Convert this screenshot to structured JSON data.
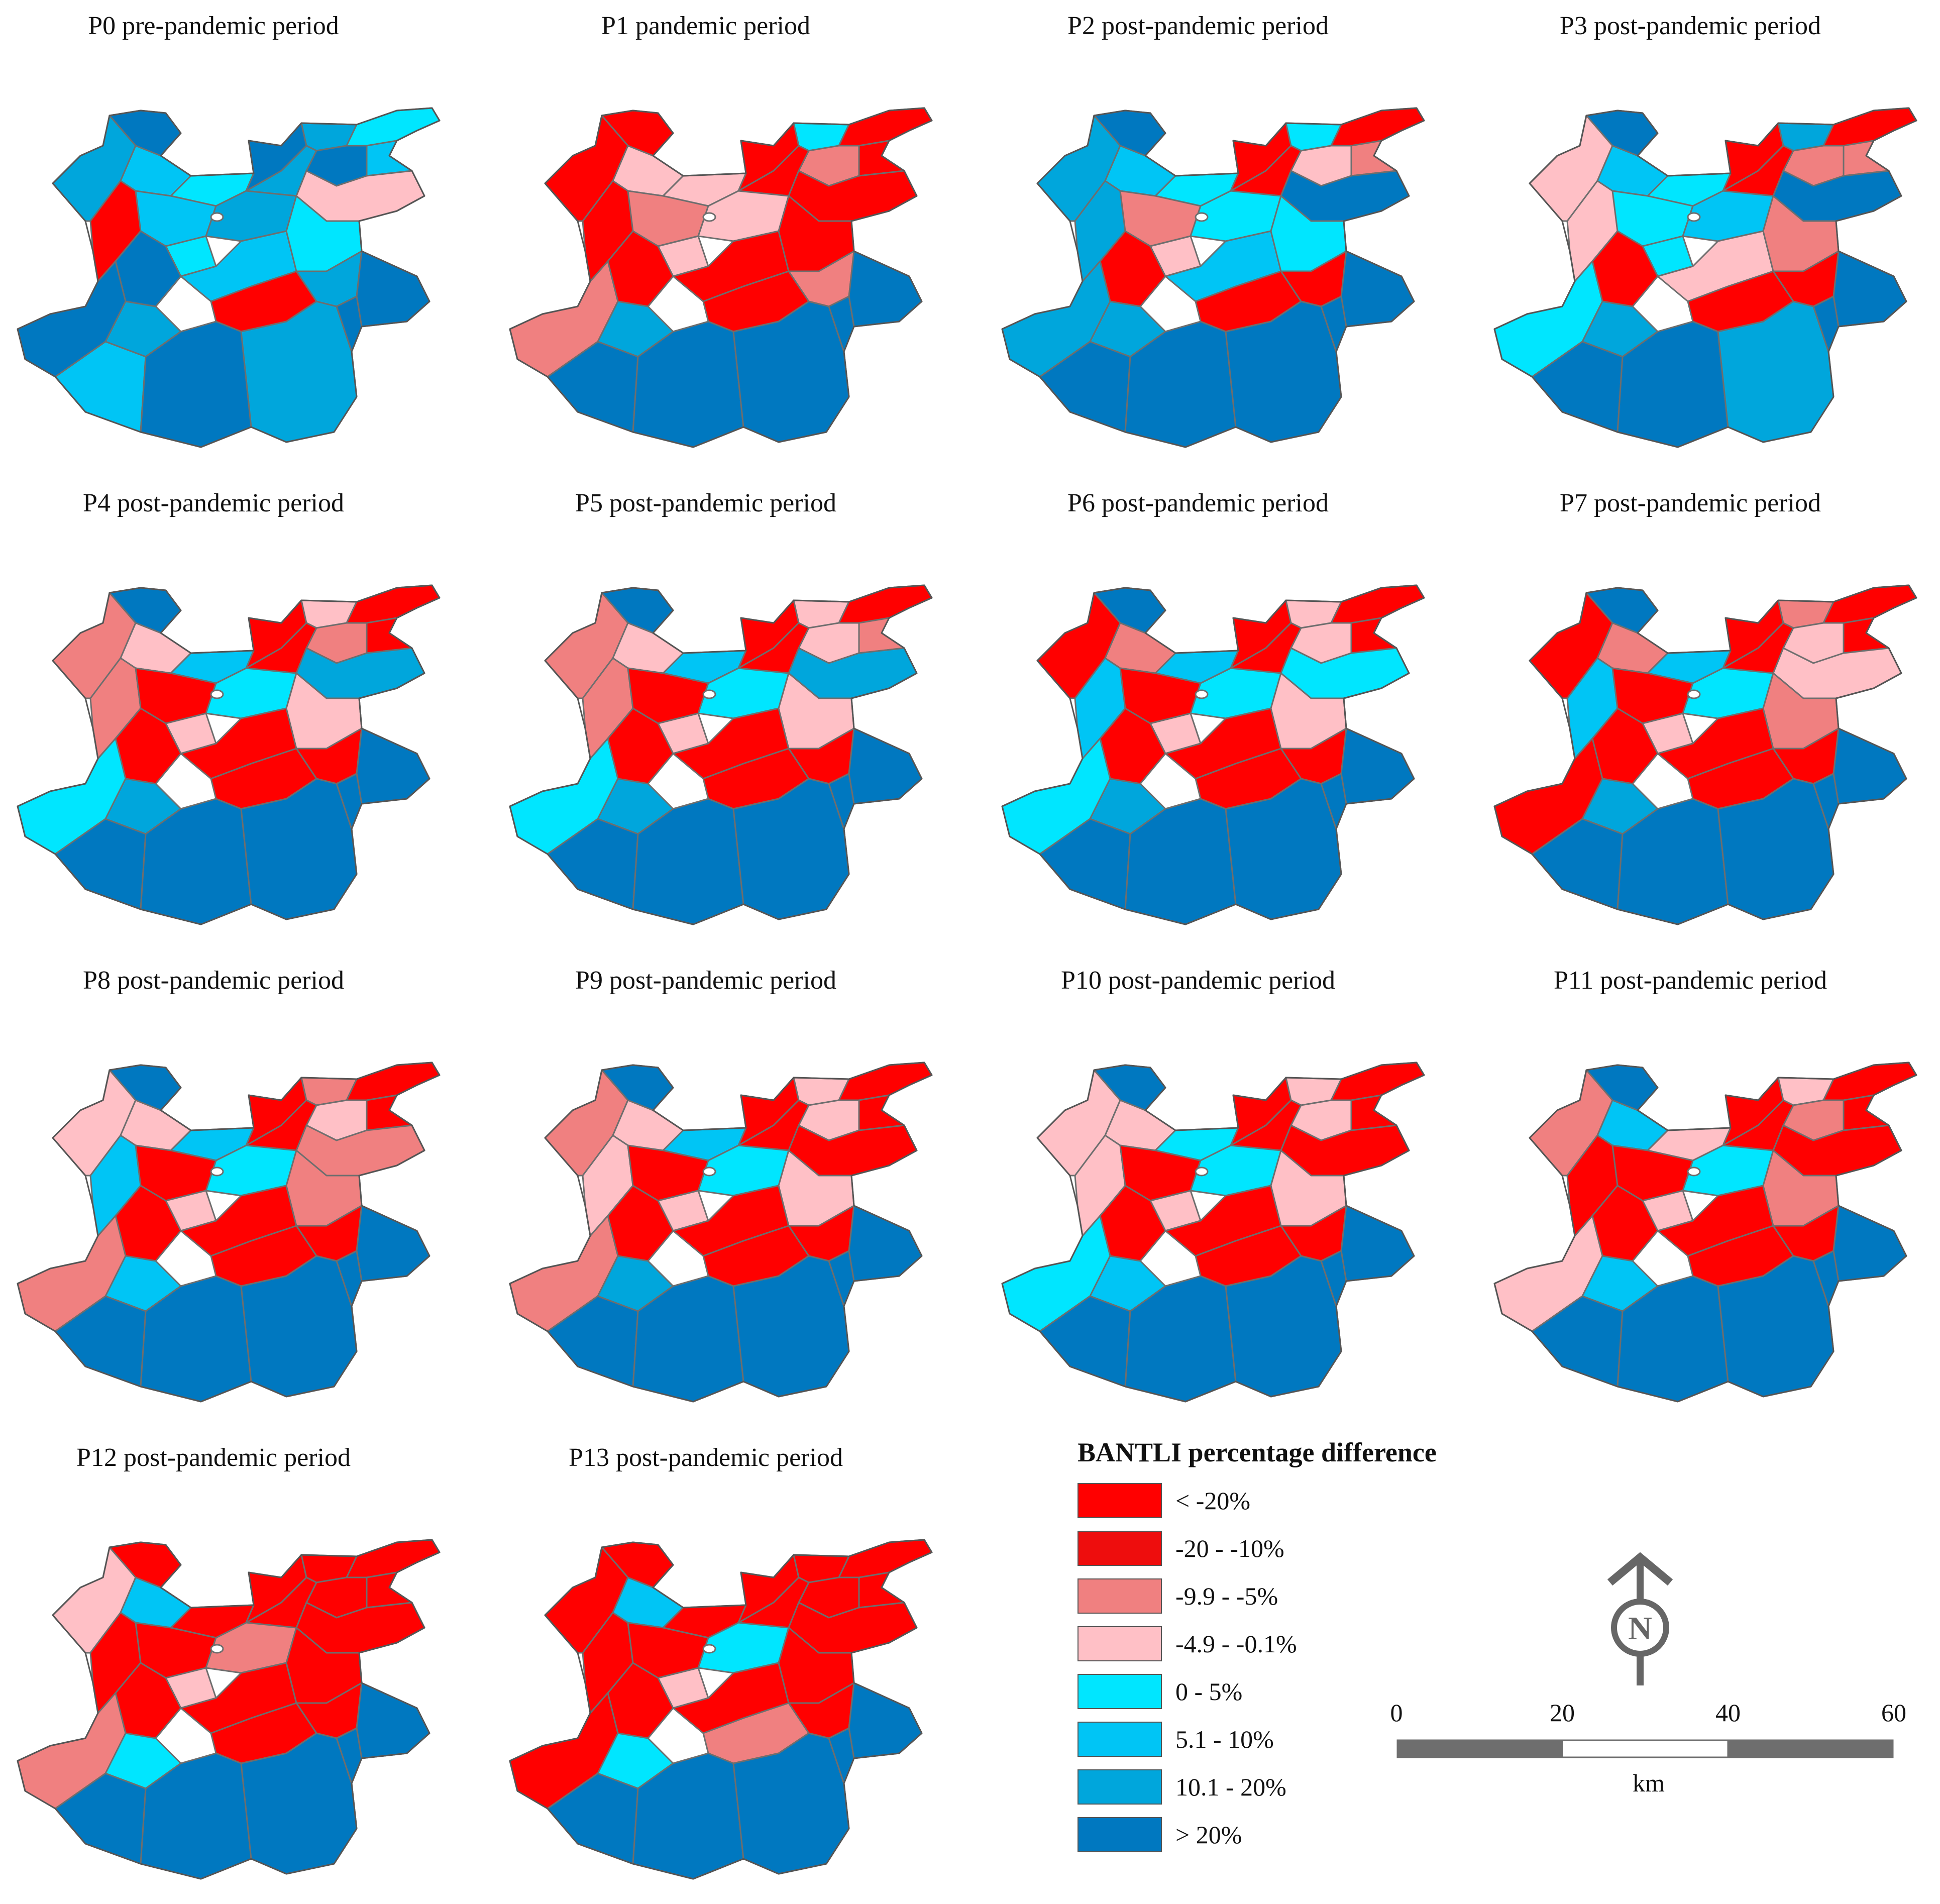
{
  "colors": {
    "c1": "#ff0000",
    "c2": "#ee0d0d",
    "c3": "#f08080",
    "c4": "#ffc0c6",
    "c5": "#00e6ff",
    "c6": "#00c5f5",
    "c7": "#00a6dc",
    "c8": "#0078c0",
    "border": "#6e6e6e"
  },
  "panels": [
    {
      "title": "P0 pre-pandemic period",
      "pal": [
        "c8",
        "c7",
        "c6",
        "c5",
        "c8",
        "c7",
        "c5",
        "c6",
        "c8",
        "c7",
        "c4",
        "c1",
        "c6",
        "c5",
        "c7",
        "c8",
        "c6",
        "c5",
        "c7",
        "c1",
        "c8",
        "c7",
        "c6",
        "c8",
        "c7",
        "c8",
        "c8"
      ]
    },
    {
      "title": "P1 pandemic period",
      "pal": [
        "c1",
        "c1",
        "c4",
        "c4",
        "c1",
        "c5",
        "c1",
        "c1",
        "c3",
        "c1",
        "c1",
        "c1",
        "c3",
        "c4",
        "c4",
        "c1",
        "c1",
        "c1",
        "c3",
        "c1",
        "c3",
        "c7",
        "c8",
        "c8",
        "c8",
        "c8",
        "c8"
      ]
    },
    {
      "title": "P2 post-pandemic period",
      "pal": [
        "c8",
        "c7",
        "c6",
        "c5",
        "c1",
        "c5",
        "c1",
        "c3",
        "c4",
        "c1",
        "c8",
        "c7",
        "c3",
        "c4",
        "c5",
        "c1",
        "c6",
        "c5",
        "c1",
        "c1",
        "c7",
        "c7",
        "c8",
        "c8",
        "c8",
        "c8",
        "c8"
      ]
    },
    {
      "title": "P3 post-pandemic period",
      "pal": [
        "c8",
        "c4",
        "c6",
        "c5",
        "c1",
        "c7",
        "c1",
        "c3",
        "c3",
        "c1",
        "c8",
        "c4",
        "c5",
        "c5",
        "c6",
        "c1",
        "c4",
        "c3",
        "c1",
        "c1",
        "c5",
        "c7",
        "c8",
        "c8",
        "c7",
        "c8",
        "c8"
      ]
    },
    {
      "title": "P4 post-pandemic period",
      "pal": [
        "c8",
        "c3",
        "c4",
        "c6",
        "c1",
        "c4",
        "c1",
        "c1",
        "c3",
        "c1",
        "c7",
        "c3",
        "c1",
        "c4",
        "c5",
        "c1",
        "c1",
        "c4",
        "c1",
        "c1",
        "c5",
        "c7",
        "c8",
        "c8",
        "c8",
        "c8",
        "c8"
      ]
    },
    {
      "title": "P5 post-pandemic period",
      "pal": [
        "c8",
        "c3",
        "c4",
        "c6",
        "c1",
        "c4",
        "c1",
        "c3",
        "c4",
        "c1",
        "c7",
        "c3",
        "c1",
        "c4",
        "c5",
        "c1",
        "c1",
        "c4",
        "c1",
        "c1",
        "c5",
        "c7",
        "c8",
        "c8",
        "c8",
        "c8",
        "c8"
      ]
    },
    {
      "title": "P6 post-pandemic period",
      "pal": [
        "c8",
        "c1",
        "c3",
        "c6",
        "c1",
        "c4",
        "c1",
        "c1",
        "c4",
        "c1",
        "c5",
        "c6",
        "c1",
        "c4",
        "c5",
        "c1",
        "c1",
        "c4",
        "c1",
        "c1",
        "c5",
        "c7",
        "c8",
        "c8",
        "c8",
        "c8",
        "c8"
      ]
    },
    {
      "title": "P7 post-pandemic period",
      "pal": [
        "c8",
        "c1",
        "c3",
        "c6",
        "c1",
        "c3",
        "c1",
        "c1",
        "c4",
        "c1",
        "c4",
        "c6",
        "c1",
        "c4",
        "c5",
        "c1",
        "c1",
        "c3",
        "c1",
        "c1",
        "c1",
        "c7",
        "c8",
        "c8",
        "c8",
        "c8",
        "c8"
      ]
    },
    {
      "title": "P8 post-pandemic period",
      "pal": [
        "c8",
        "c4",
        "c4",
        "c6",
        "c1",
        "c3",
        "c1",
        "c1",
        "c4",
        "c1",
        "c3",
        "c6",
        "c1",
        "c4",
        "c5",
        "c1",
        "c1",
        "c3",
        "c1",
        "c1",
        "c3",
        "c6",
        "c8",
        "c8",
        "c8",
        "c8",
        "c8"
      ]
    },
    {
      "title": "P9 post-pandemic period",
      "pal": [
        "c8",
        "c3",
        "c4",
        "c6",
        "c1",
        "c4",
        "c1",
        "c1",
        "c4",
        "c1",
        "c1",
        "c4",
        "c1",
        "c4",
        "c5",
        "c1",
        "c1",
        "c4",
        "c1",
        "c1",
        "c3",
        "c7",
        "c8",
        "c8",
        "c8",
        "c8",
        "c8"
      ]
    },
    {
      "title": "P10 post-pandemic period",
      "pal": [
        "c8",
        "c4",
        "c4",
        "c5",
        "c1",
        "c4",
        "c1",
        "c1",
        "c4",
        "c1",
        "c1",
        "c4",
        "c1",
        "c4",
        "c5",
        "c1",
        "c1",
        "c4",
        "c1",
        "c1",
        "c5",
        "c6",
        "c8",
        "c8",
        "c8",
        "c8",
        "c8"
      ]
    },
    {
      "title": "P11 post-pandemic period",
      "pal": [
        "c8",
        "c3",
        "c6",
        "c4",
        "c1",
        "c4",
        "c1",
        "c1",
        "c3",
        "c1",
        "c1",
        "c1",
        "c1",
        "c4",
        "c5",
        "c1",
        "c1",
        "c3",
        "c1",
        "c1",
        "c4",
        "c6",
        "c8",
        "c8",
        "c8",
        "c8",
        "c8"
      ]
    },
    {
      "title": "P12 post-pandemic period",
      "pal": [
        "c1",
        "c4",
        "c6",
        "c1",
        "c1",
        "c1",
        "c1",
        "c1",
        "c1",
        "c1",
        "c1",
        "c1",
        "c1",
        "c4",
        "c3",
        "c1",
        "c1",
        "c1",
        "c1",
        "c1",
        "c3",
        "c5",
        "c8",
        "c8",
        "c8",
        "c8",
        "c8"
      ]
    },
    {
      "title": "P13 post-pandemic period",
      "pal": [
        "c1",
        "c1",
        "c6",
        "c1",
        "c1",
        "c1",
        "c1",
        "c1",
        "c1",
        "c1",
        "c1",
        "c1",
        "c1",
        "c4",
        "c5",
        "c1",
        "c1",
        "c1",
        "c1",
        "c3",
        "c1",
        "c5",
        "c8",
        "c8",
        "c8",
        "c8",
        "c8"
      ]
    }
  ],
  "legend": {
    "title": "BANTLI percentage difference",
    "items": [
      {
        "label": "< -20%",
        "color": "c1"
      },
      {
        "label": "-20 - -10%",
        "color": "c2"
      },
      {
        "label": "-9.9 - -5%",
        "color": "c3"
      },
      {
        "label": "-4.9 - -0.1%",
        "color": "c4"
      },
      {
        "label": "0 - 5%",
        "color": "c5"
      },
      {
        "label": "5.1 - 10%",
        "color": "c6"
      },
      {
        "label": "10.1 - 20%",
        "color": "c7"
      },
      {
        "label": "> 20%",
        "color": "c8"
      }
    ]
  },
  "north_arrow": {
    "label": "N"
  },
  "scale_bar": {
    "ticks": [
      "0",
      "20",
      "40",
      "60"
    ],
    "unit": "km"
  }
}
